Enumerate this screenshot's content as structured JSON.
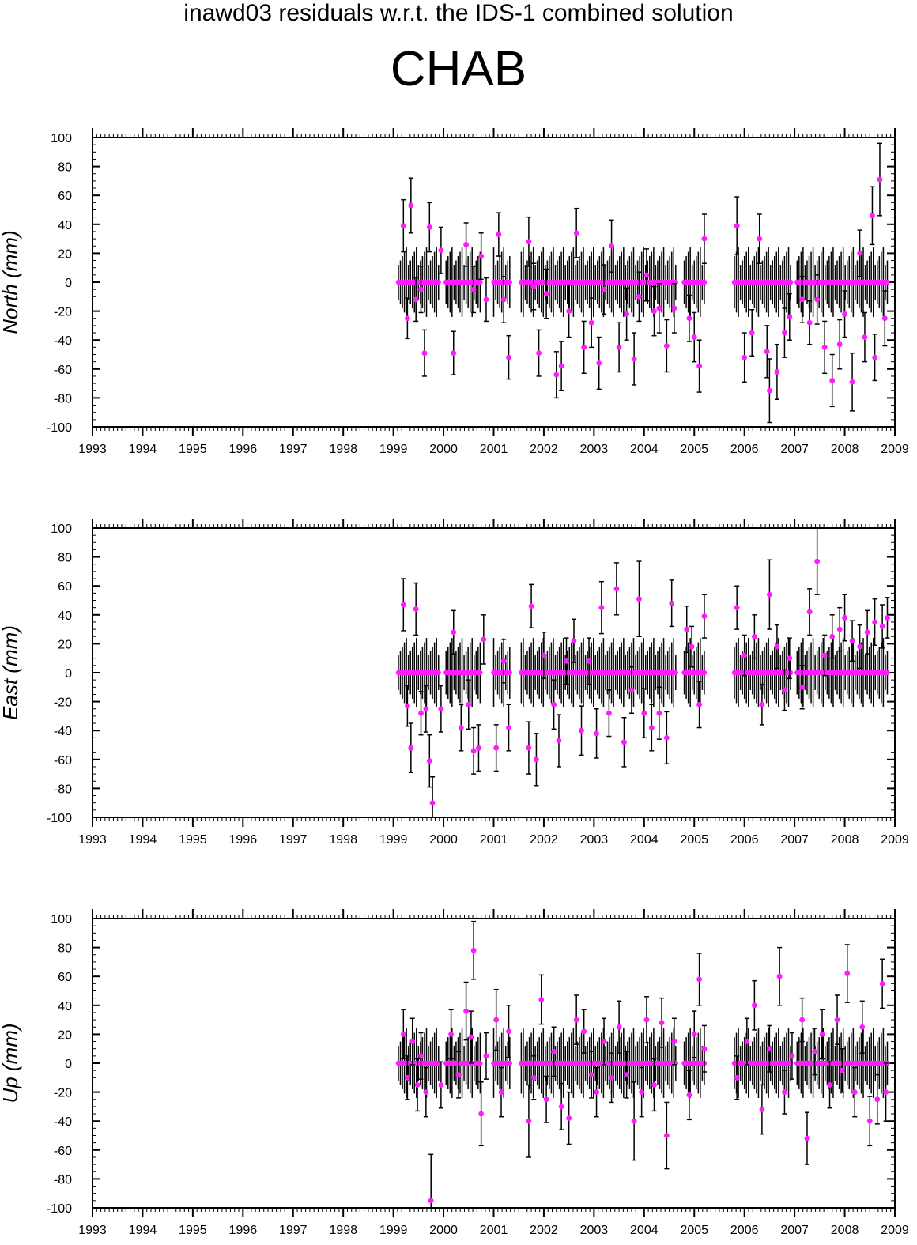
{
  "title": "inawd03 residuals w.r.t. the IDS-1 combined solution",
  "subtitle": "CHAB",
  "colors": {
    "point": "#ff1aff",
    "errorbar": "#000000",
    "axis": "#000000"
  },
  "chart_data": [
    {
      "type": "scatter",
      "ylabel": "North (mm)",
      "xlim": [
        1993,
        2009
      ],
      "ylim": [
        -100,
        100
      ],
      "xticks": [
        "1993",
        "1994",
        "1995",
        "1996",
        "1997",
        "1998",
        "1999",
        "2000",
        "2001",
        "2002",
        "2003",
        "2004",
        "2005",
        "2006",
        "2007",
        "2008",
        "2009"
      ],
      "yticks": [
        "100",
        "80",
        "60",
        "40",
        "20",
        "0",
        "-20",
        "-40",
        "-60",
        "-80",
        "-100"
      ],
      "series": [
        {
          "x": [
            1999.2,
            1999.28,
            1999.35,
            1999.45,
            1999.55,
            1999.62,
            1999.72,
            1999.95,
            2000.2,
            2000.45,
            2000.6,
            2000.75,
            2000.85,
            2001.1,
            2001.2,
            2001.3,
            2001.7,
            2001.8,
            2001.9,
            2002.05,
            2002.25,
            2002.35,
            2002.5,
            2002.65,
            2002.8,
            2002.95,
            2003.1,
            2003.2,
            2003.35,
            2003.5,
            2003.65,
            2003.8,
            2003.9,
            2004.05,
            2004.2,
            2004.3,
            2004.45,
            2004.6,
            2004.9,
            2005.0,
            2005.1,
            2005.2,
            2005.85,
            2006.0,
            2006.15,
            2006.3,
            2006.45,
            2006.5,
            2006.65,
            2006.8,
            2006.9,
            2007.15,
            2007.3,
            2007.45,
            2007.6,
            2007.75,
            2007.9,
            2008.0,
            2008.15,
            2008.3,
            2008.4,
            2008.55,
            2008.6,
            2008.7,
            2008.8
          ],
          "y": [
            39,
            -25,
            53,
            -12,
            -5,
            -49,
            38,
            22,
            -49,
            26,
            -5,
            18,
            -12,
            33,
            -12,
            -52,
            28,
            -3,
            -49,
            -8,
            -64,
            -58,
            -20,
            34,
            -45,
            -28,
            -56,
            -5,
            25,
            -45,
            -22,
            -53,
            -10,
            5,
            -20,
            -18,
            -44,
            -18,
            -25,
            -38,
            -58,
            30,
            39,
            -52,
            -35,
            30,
            -48,
            -75,
            -62,
            -35,
            -24,
            -12,
            -28,
            -12,
            -45,
            -68,
            -43,
            -22,
            -69,
            20,
            -38,
            46,
            -52,
            71,
            -25
          ],
          "err": [
            18,
            14,
            19,
            15,
            16,
            16,
            17,
            16,
            15,
            15,
            16,
            16,
            15,
            15,
            16,
            15,
            17,
            16,
            16,
            17,
            16,
            17,
            18,
            17,
            18,
            17,
            18,
            17,
            18,
            17,
            18,
            18,
            17,
            18,
            17,
            17,
            18,
            17,
            16,
            17,
            18,
            17,
            20,
            17,
            16,
            17,
            18,
            22,
            19,
            17,
            16,
            16,
            15,
            17,
            18,
            18,
            17,
            16,
            20,
            16,
            17,
            20,
            16,
            25,
            19
          ]
        }
      ]
    },
    {
      "type": "scatter",
      "ylabel": "East (mm)",
      "xlim": [
        1993,
        2009
      ],
      "ylim": [
        -100,
        100
      ],
      "xticks": [
        "1993",
        "1994",
        "1995",
        "1996",
        "1997",
        "1998",
        "1999",
        "2000",
        "2001",
        "2002",
        "2003",
        "2004",
        "2005",
        "2006",
        "2007",
        "2008",
        "2009"
      ],
      "yticks": [
        "100",
        "80",
        "60",
        "40",
        "20",
        "0",
        "-20",
        "-40",
        "-60",
        "-80",
        "-100"
      ],
      "series": [
        {
          "x": [
            1999.2,
            1999.28,
            1999.35,
            1999.45,
            1999.55,
            1999.65,
            1999.72,
            1999.78,
            1999.95,
            2000.2,
            2000.35,
            2000.5,
            2000.6,
            2000.7,
            2000.8,
            2001.05,
            2001.2,
            2001.3,
            2001.7,
            2001.75,
            2001.85,
            2002.0,
            2002.2,
            2002.3,
            2002.45,
            2002.6,
            2002.75,
            2002.9,
            2003.05,
            2003.15,
            2003.3,
            2003.45,
            2003.6,
            2003.75,
            2003.9,
            2004.0,
            2004.15,
            2004.3,
            2004.45,
            2004.55,
            2004.85,
            2004.95,
            2005.1,
            2005.2,
            2005.85,
            2006.0,
            2006.2,
            2006.35,
            2006.5,
            2006.65,
            2006.8,
            2006.9,
            2007.15,
            2007.3,
            2007.45,
            2007.6,
            2007.75,
            2007.9,
            2008.0,
            2008.15,
            2008.3,
            2008.45,
            2008.6,
            2008.75,
            2008.85
          ],
          "y": [
            47,
            -23,
            -52,
            44,
            -28,
            -25,
            -61,
            -90,
            -25,
            28,
            -38,
            -22,
            -54,
            -52,
            23,
            -52,
            8,
            -38,
            -52,
            46,
            -60,
            12,
            -22,
            -47,
            8,
            22,
            -40,
            8,
            -42,
            45,
            -28,
            58,
            -48,
            -12,
            51,
            -28,
            -38,
            -28,
            -45,
            48,
            30,
            18,
            -22,
            39,
            45,
            12,
            25,
            -22,
            54,
            18,
            -12,
            10,
            -10,
            42,
            77,
            12,
            25,
            30,
            38,
            22,
            18,
            28,
            35,
            32,
            38
          ],
          "err": [
            18,
            14,
            17,
            18,
            15,
            16,
            18,
            18,
            16,
            15,
            16,
            17,
            16,
            16,
            17,
            16,
            15,
            16,
            18,
            15,
            18,
            16,
            17,
            18,
            16,
            15,
            17,
            16,
            17,
            18,
            16,
            18,
            17,
            16,
            26,
            17,
            16,
            18,
            18,
            16,
            16,
            14,
            16,
            15,
            15,
            14,
            15,
            14,
            24,
            15,
            14,
            14,
            15,
            16,
            23,
            14,
            15,
            15,
            16,
            14,
            15,
            15,
            16,
            15,
            14
          ]
        }
      ]
    },
    {
      "type": "scatter",
      "ylabel": "Up (mm)",
      "xlim": [
        1993,
        2009
      ],
      "ylim": [
        -100,
        100
      ],
      "xticks": [
        "1993",
        "1994",
        "1995",
        "1996",
        "1997",
        "1998",
        "1999",
        "2000",
        "2001",
        "2002",
        "2003",
        "2004",
        "2005",
        "2006",
        "2007",
        "2008",
        "2009"
      ],
      "yticks": [
        "100",
        "80",
        "60",
        "40",
        "20",
        "0",
        "-20",
        "-40",
        "-60",
        "-80",
        "-100"
      ],
      "series": [
        {
          "x": [
            1999.2,
            1999.28,
            1999.38,
            1999.48,
            1999.55,
            1999.65,
            1999.75,
            1999.95,
            2000.15,
            2000.3,
            2000.45,
            2000.55,
            2000.6,
            2000.75,
            2000.85,
            2001.05,
            2001.15,
            2001.3,
            2001.7,
            2001.8,
            2001.95,
            2002.05,
            2002.2,
            2002.35,
            2002.5,
            2002.65,
            2002.8,
            2002.95,
            2003.05,
            2003.2,
            2003.35,
            2003.5,
            2003.65,
            2003.8,
            2003.95,
            2004.05,
            2004.2,
            2004.35,
            2004.45,
            2004.6,
            2004.9,
            2005.0,
            2005.1,
            2005.2,
            2005.85,
            2006.05,
            2006.2,
            2006.35,
            2006.5,
            2006.7,
            2006.8,
            2006.95,
            2007.15,
            2007.25,
            2007.4,
            2007.55,
            2007.7,
            2007.85,
            2007.95,
            2008.05,
            2008.2,
            2008.35,
            2008.5,
            2008.65,
            2008.75,
            2008.82
          ],
          "y": [
            20,
            -10,
            15,
            -15,
            5,
            -20,
            -95,
            -15,
            20,
            -8,
            36,
            18,
            78,
            -35,
            5,
            30,
            -20,
            22,
            -40,
            -10,
            44,
            -25,
            8,
            -30,
            -38,
            30,
            22,
            -8,
            -20,
            15,
            -10,
            25,
            -8,
            -40,
            -20,
            30,
            -15,
            28,
            -50,
            15,
            -22,
            20,
            58,
            10,
            -10,
            15,
            40,
            -32,
            10,
            60,
            -20,
            5,
            30,
            -52,
            8,
            20,
            -15,
            30,
            -5,
            62,
            -20,
            25,
            -40,
            -25,
            55,
            -20
          ],
          "err": [
            17,
            15,
            16,
            18,
            16,
            17,
            32,
            16,
            17,
            16,
            20,
            18,
            20,
            22,
            16,
            21,
            17,
            18,
            25,
            15,
            17,
            16,
            17,
            16,
            18,
            17,
            15,
            16,
            17,
            16,
            17,
            18,
            16,
            27,
            17,
            16,
            18,
            17,
            23,
            16,
            17,
            16,
            18,
            16,
            15,
            16,
            17,
            17,
            16,
            20,
            15,
            16,
            15,
            18,
            16,
            17,
            16,
            17,
            15,
            20,
            17,
            18,
            17,
            17,
            17,
            20
          ]
        }
      ]
    }
  ]
}
